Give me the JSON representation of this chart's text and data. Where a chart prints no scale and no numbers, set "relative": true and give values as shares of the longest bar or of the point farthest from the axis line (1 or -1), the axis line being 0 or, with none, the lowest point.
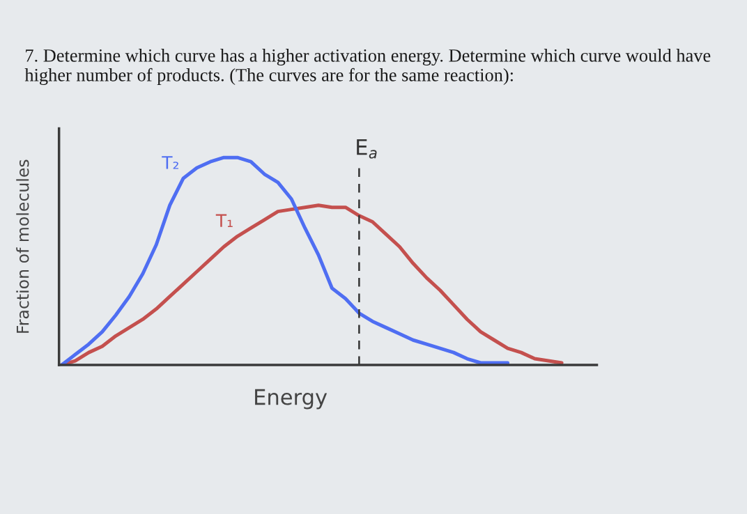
{
  "chart_data": {
    "type": "line",
    "relative": true,
    "title": "7. Determine which curve has a higher activation energy. Determine which curve would have higher number of products. (The curves are for the same reaction):",
    "xlabel": "Energy",
    "ylabel": "Fraction of molecules",
    "categories": [
      null,
      null,
      null,
      null,
      null,
      null,
      null,
      null,
      null,
      null,
      null,
      null,
      null,
      null,
      null,
      null,
      null,
      null,
      null,
      null,
      null,
      null,
      null,
      null,
      null,
      null,
      null,
      null,
      null,
      null,
      null,
      null,
      null,
      null,
      null,
      null,
      null,
      null,
      null,
      null
    ],
    "series": [
      {
        "name": "T₁",
        "color": "#c4504e",
        "values": [
          0,
          0.02,
          0.06,
          0.09,
          0.14,
          0.18,
          0.22,
          0.27,
          0.33,
          0.39,
          0.45,
          0.51,
          0.57,
          0.62,
          0.66,
          0.7,
          0.74,
          0.75,
          0.76,
          0.77,
          0.76,
          0.76,
          0.72,
          0.69,
          0.63,
          0.57,
          0.49,
          0.42,
          0.36,
          0.29,
          0.22,
          0.16,
          0.12,
          0.08,
          0.06,
          0.03,
          0.02,
          0.01,
          null,
          null
        ]
      },
      {
        "name": "T₂",
        "color": "#4f6ef2",
        "values": [
          0,
          0.05,
          0.1,
          0.16,
          0.24,
          0.33,
          0.44,
          0.58,
          0.77,
          0.9,
          0.95,
          0.98,
          1.0,
          1.0,
          0.98,
          0.92,
          0.88,
          0.8,
          0.66,
          0.53,
          0.37,
          0.32,
          0.25,
          0.21,
          0.18,
          0.15,
          0.12,
          0.1,
          0.08,
          0.06,
          0.03,
          0.01,
          0.01,
          0.01,
          null,
          null,
          null,
          null,
          null,
          null
        ]
      }
    ],
    "annotations": [
      "E$_{a}$"
    ]
  }
}
